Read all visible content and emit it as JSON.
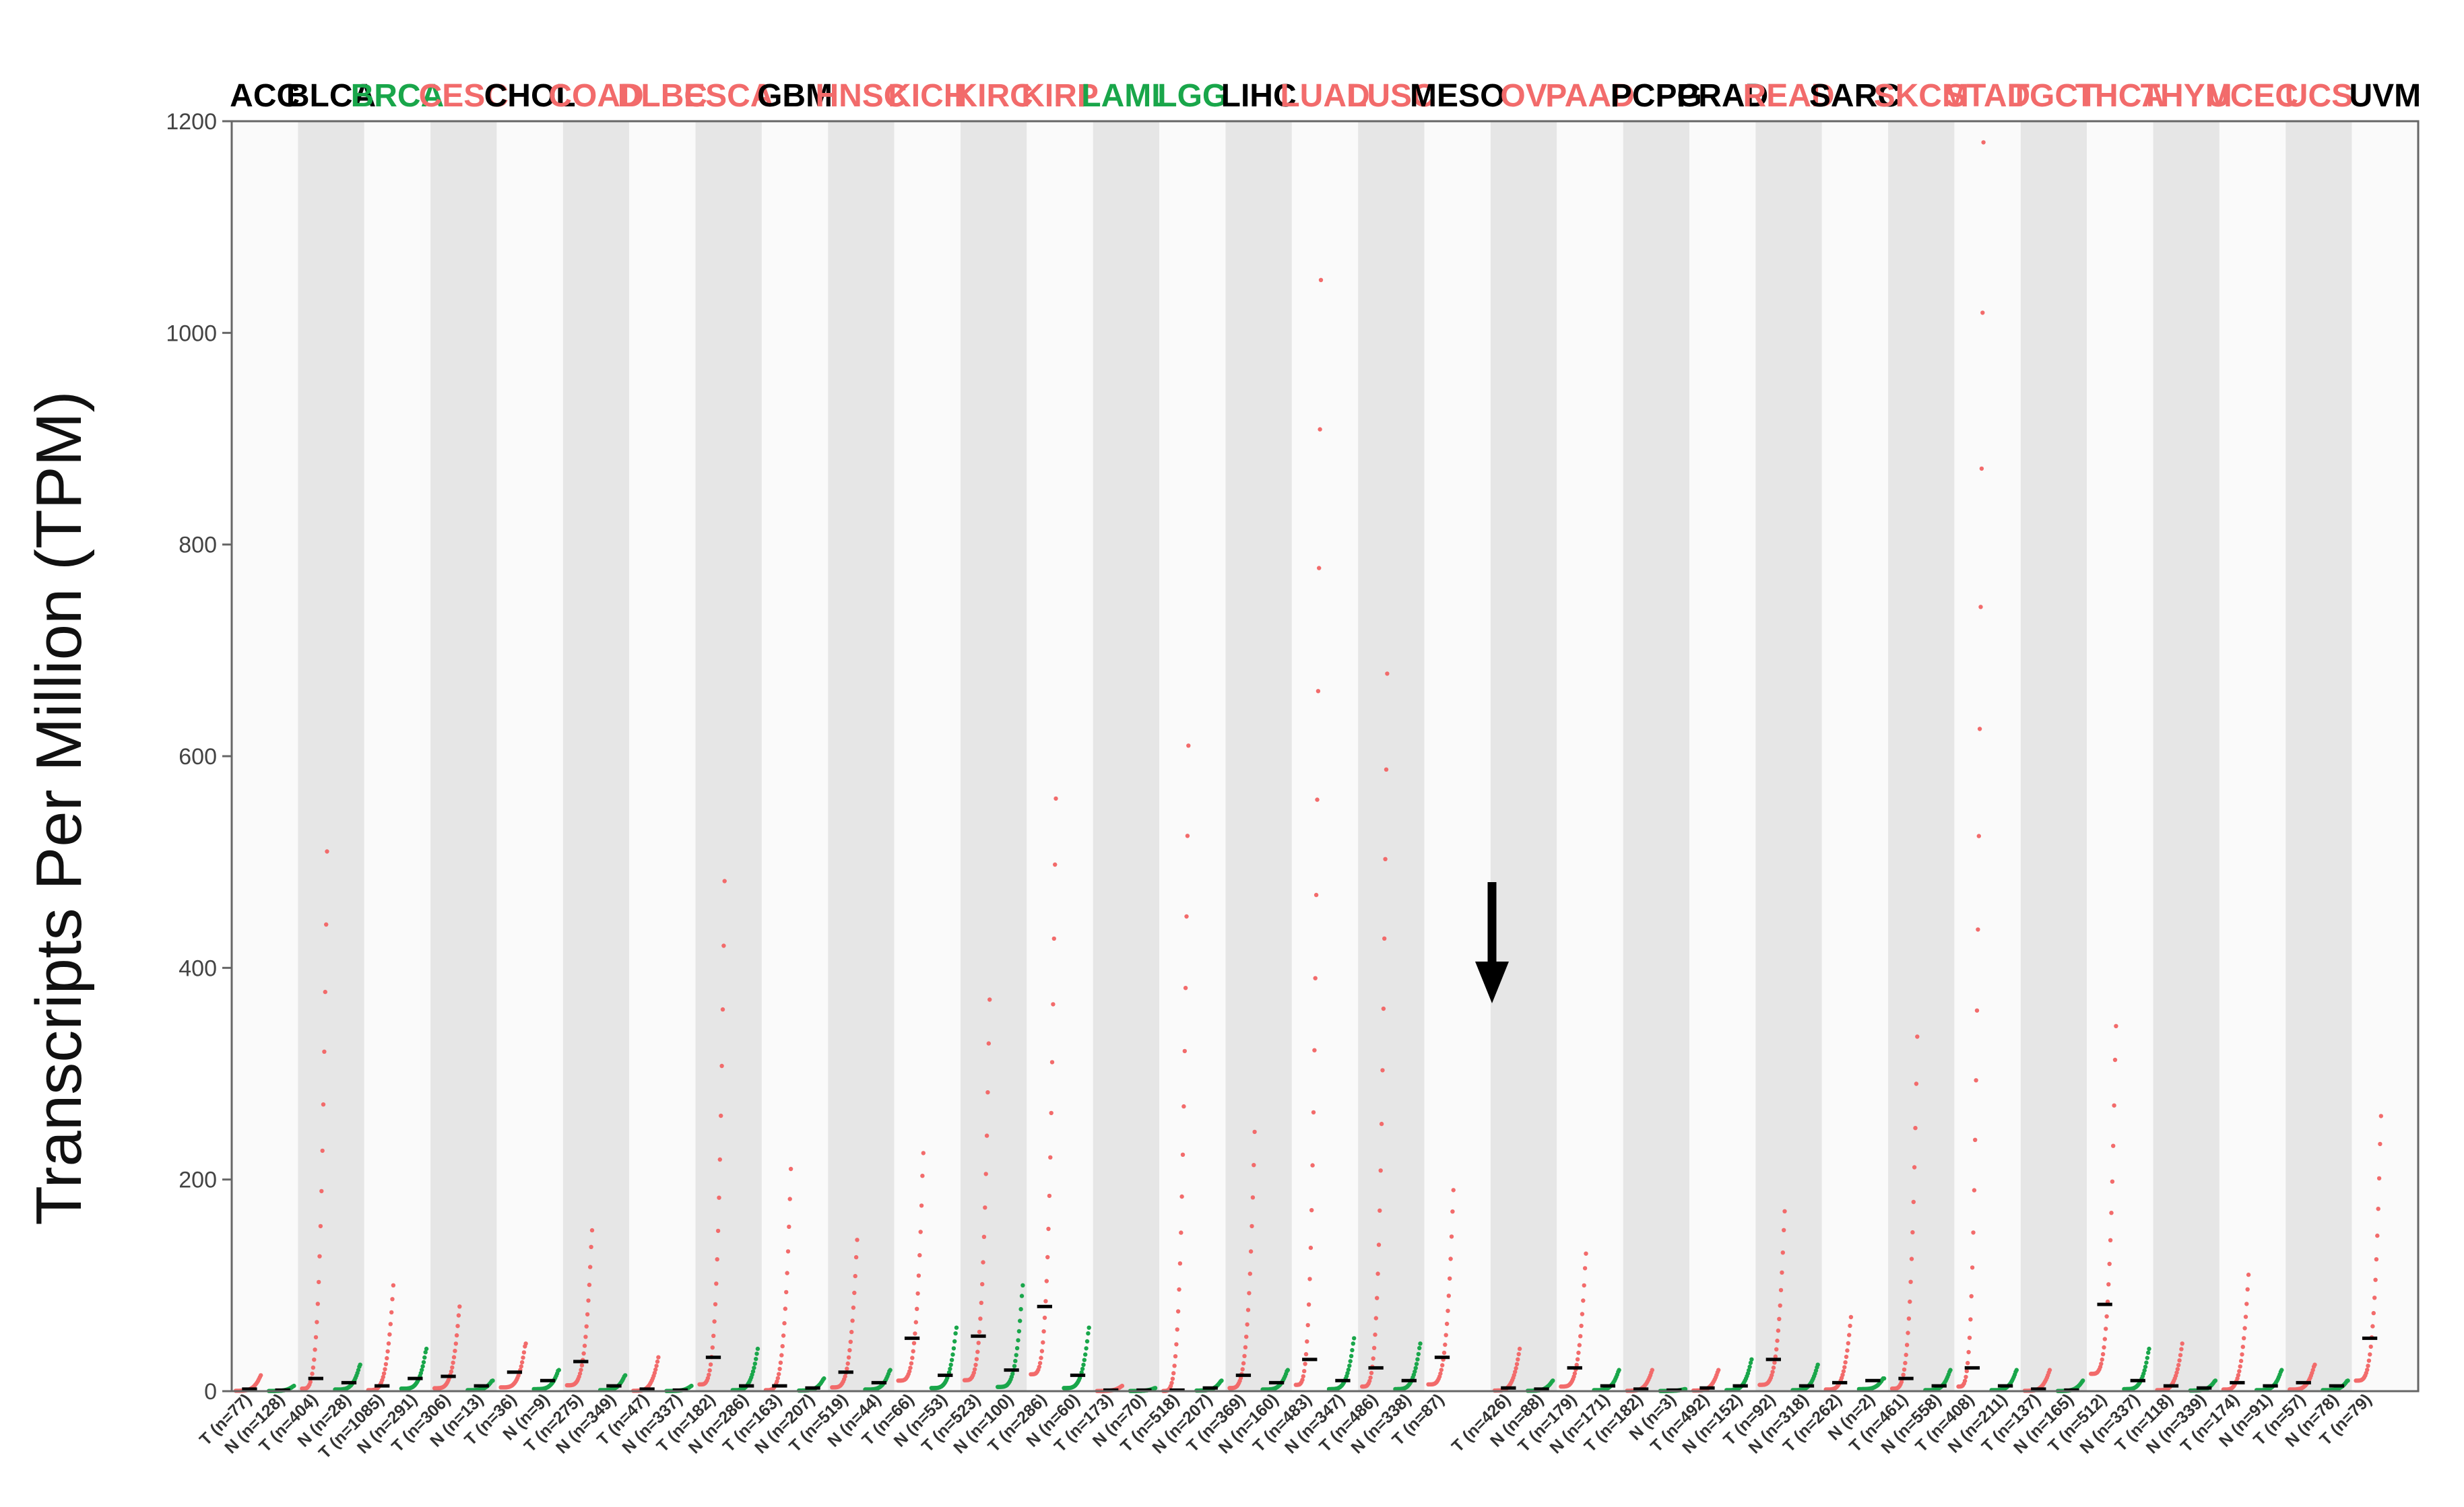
{
  "chart_data": {
    "type": "scatter",
    "ylabel": "Transcripts Per Million (TPM)",
    "ylim": [
      0,
      1200
    ],
    "yticks": [
      0,
      200,
      400,
      600,
      800,
      1000,
      1200
    ],
    "colors": {
      "tumor": "#f26b6b",
      "normal": "#19a64a",
      "median": "#000000",
      "label_black": "#000000",
      "band_dark": "#e6e6e6",
      "band_light": "#fafafa"
    },
    "cancer_types": [
      {
        "name": "ACC",
        "color": "black",
        "tumor": {
          "label": "T (n=77)",
          "median": 2,
          "max": 15
        },
        "normal": {
          "label": "N (n=128)",
          "median": 1,
          "max": 5
        }
      },
      {
        "name": "BLCA",
        "color": "black",
        "tumor": {
          "label": "T (n=404)",
          "median": 12,
          "max": 510
        },
        "normal": {
          "label": "N (n=28)",
          "median": 8,
          "max": 25
        }
      },
      {
        "name": "BRCA",
        "color": "green",
        "tumor": {
          "label": "T (n=1085)",
          "median": 5,
          "max": 100
        },
        "normal": {
          "label": "N (n=291)",
          "median": 12,
          "max": 40
        }
      },
      {
        "name": "CESC",
        "color": "red",
        "tumor": {
          "label": "T (n=306)",
          "median": 14,
          "max": 80
        },
        "normal": {
          "label": "N (n=13)",
          "median": 5,
          "max": 10
        }
      },
      {
        "name": "CHOL",
        "color": "black",
        "tumor": {
          "label": "T (n=36)",
          "median": 18,
          "max": 45
        },
        "normal": {
          "label": "N (n=9)",
          "median": 10,
          "max": 20
        }
      },
      {
        "name": "COAD",
        "color": "red",
        "tumor": {
          "label": "T (n=275)",
          "median": 28,
          "max": 152
        },
        "normal": {
          "label": "N (n=349)",
          "median": 5,
          "max": 15
        }
      },
      {
        "name": "DLBC",
        "color": "red",
        "tumor": {
          "label": "T (n=47)",
          "median": 2,
          "max": 32
        },
        "normal": {
          "label": "N (n=337)",
          "median": 1,
          "max": 5
        }
      },
      {
        "name": "ESCA",
        "color": "red",
        "tumor": {
          "label": "T (n=182)",
          "median": 32,
          "max": 482
        },
        "normal": {
          "label": "N (n=286)",
          "median": 5,
          "max": 40
        }
      },
      {
        "name": "GBM",
        "color": "black",
        "tumor": {
          "label": "T (n=163)",
          "median": 5,
          "max": 210
        },
        "normal": {
          "label": "N (n=207)",
          "median": 3,
          "max": 12
        }
      },
      {
        "name": "HNSC",
        "color": "red",
        "tumor": {
          "label": "T (n=519)",
          "median": 18,
          "max": 143
        },
        "normal": {
          "label": "N (n=44)",
          "median": 8,
          "max": 20
        }
      },
      {
        "name": "KICH",
        "color": "red",
        "tumor": {
          "label": "T (n=66)",
          "median": 50,
          "max": 225
        },
        "normal": {
          "label": "N (n=53)",
          "median": 15,
          "max": 60
        }
      },
      {
        "name": "KIRC",
        "color": "red",
        "tumor": {
          "label": "T (n=523)",
          "median": 52,
          "max": 370
        },
        "normal": {
          "label": "N (n=100)",
          "median": 20,
          "max": 100
        }
      },
      {
        "name": "KIRP",
        "color": "red",
        "tumor": {
          "label": "T (n=286)",
          "median": 80,
          "max": 560
        },
        "normal": {
          "label": "N (n=60)",
          "median": 15,
          "max": 60
        }
      },
      {
        "name": "LAML",
        "color": "green",
        "tumor": {
          "label": "T (n=173)",
          "median": 1,
          "max": 5
        },
        "normal": {
          "label": "N (n=70)",
          "median": 1,
          "max": 3
        }
      },
      {
        "name": "LGG",
        "color": "green",
        "tumor": {
          "label": "T (n=518)",
          "median": 1,
          "max": 610
        },
        "normal": {
          "label": "N (n=207)",
          "median": 3,
          "max": 10
        }
      },
      {
        "name": "LIHC",
        "color": "black",
        "tumor": {
          "label": "T (n=369)",
          "median": 15,
          "max": 245
        },
        "normal": {
          "label": "N (n=160)",
          "median": 8,
          "max": 20
        }
      },
      {
        "name": "LUAD",
        "color": "red",
        "tumor": {
          "label": "T (n=483)",
          "median": 30,
          "max": 1050
        },
        "normal": {
          "label": "N (n=347)",
          "median": 10,
          "max": 50
        }
      },
      {
        "name": "LUSC",
        "color": "red",
        "tumor": {
          "label": "T (n=486)",
          "median": 22,
          "max": 678
        },
        "normal": {
          "label": "N (n=338)",
          "median": 10,
          "max": 45
        }
      },
      {
        "name": "MESO",
        "color": "black",
        "tumor": {
          "label": "T (n=87)",
          "median": 32,
          "max": 190
        }
      },
      {
        "name": "OV",
        "color": "red",
        "tumor": {
          "label": "T (n=426)",
          "median": 3,
          "max": 40
        },
        "normal": {
          "label": "N (n=88)",
          "median": 2,
          "max": 10
        }
      },
      {
        "name": "PAAD",
        "color": "red",
        "tumor": {
          "label": "T (n=179)",
          "median": 22,
          "max": 130
        },
        "normal": {
          "label": "N (n=171)",
          "median": 5,
          "max": 20
        }
      },
      {
        "name": "PCPG",
        "color": "black",
        "tumor": {
          "label": "T (n=182)",
          "median": 2,
          "max": 20
        },
        "normal": {
          "label": "N (n=3)",
          "median": 1,
          "max": 2
        }
      },
      {
        "name": "PRAD",
        "color": "black",
        "tumor": {
          "label": "T (n=492)",
          "median": 3,
          "max": 20
        },
        "normal": {
          "label": "N (n=152)",
          "median": 5,
          "max": 30
        }
      },
      {
        "name": "READ",
        "color": "red",
        "tumor": {
          "label": "T (n=92)",
          "median": 30,
          "max": 170
        },
        "normal": {
          "label": "N (n=318)",
          "median": 5,
          "max": 25
        }
      },
      {
        "name": "SARC",
        "color": "black",
        "tumor": {
          "label": "T (n=262)",
          "median": 8,
          "max": 70
        },
        "normal": {
          "label": "N (n=2)",
          "median": 10,
          "max": 12
        }
      },
      {
        "name": "SKCM",
        "color": "red",
        "tumor": {
          "label": "T (n=461)",
          "median": 12,
          "max": 335
        },
        "normal": {
          "label": "N (n=558)",
          "median": 5,
          "max": 20
        }
      },
      {
        "name": "STAD",
        "color": "red",
        "tumor": {
          "label": "T (n=408)",
          "median": 22,
          "max": 1180
        },
        "normal": {
          "label": "N (n=211)",
          "median": 5,
          "max": 20
        }
      },
      {
        "name": "TGCT",
        "color": "red",
        "tumor": {
          "label": "T (n=137)",
          "median": 2,
          "max": 20
        },
        "normal": {
          "label": "N (n=165)",
          "median": 1,
          "max": 10
        }
      },
      {
        "name": "THCA",
        "color": "red",
        "tumor": {
          "label": "T (n=512)",
          "median": 82,
          "max": 345
        },
        "normal": {
          "label": "N (n=337)",
          "median": 10,
          "max": 40
        }
      },
      {
        "name": "THYM",
        "color": "red",
        "tumor": {
          "label": "T (n=118)",
          "median": 5,
          "max": 45
        },
        "normal": {
          "label": "N (n=339)",
          "median": 3,
          "max": 10
        }
      },
      {
        "name": "UCEC",
        "color": "red",
        "tumor": {
          "label": "T (n=174)",
          "median": 8,
          "max": 110
        },
        "normal": {
          "label": "N (n=91)",
          "median": 5,
          "max": 20
        }
      },
      {
        "name": "UCS",
        "color": "red",
        "tumor": {
          "label": "T (n=57)",
          "median": 8,
          "max": 25
        },
        "normal": {
          "label": "N (n=78)",
          "median": 5,
          "max": 10
        }
      },
      {
        "name": "UVM",
        "color": "black",
        "tumor": {
          "label": "T (n=79)",
          "median": 50,
          "max": 260
        }
      }
    ],
    "annotation": {
      "type": "arrow",
      "pointing": "down",
      "target": "MESO"
    },
    "grid": false
  }
}
